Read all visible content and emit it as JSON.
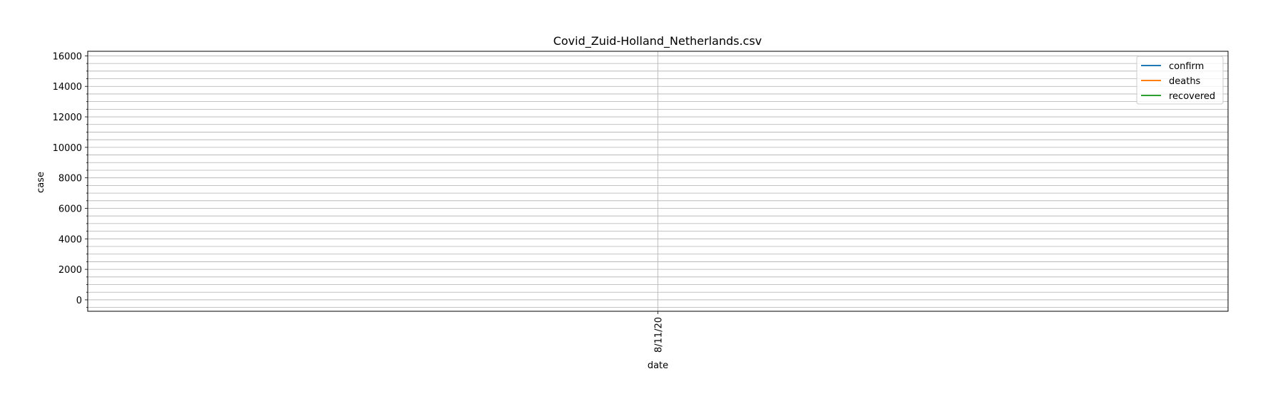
{
  "chart_data": {
    "type": "line",
    "title": "Covid_Zuid-Holland_Netherlands.csv",
    "xlabel": "date",
    "ylabel": "case",
    "x": [
      "8/11/20"
    ],
    "ylim": [
      -750,
      16300
    ],
    "yticks": [
      0,
      2000,
      4000,
      6000,
      8000,
      10000,
      12000,
      14000,
      16000
    ],
    "y_minor_step": 500,
    "grid": true,
    "legend_position": "top-right",
    "series": [
      {
        "name": "confirm",
        "color": "#1f77b4",
        "values": [
          null
        ]
      },
      {
        "name": "deaths",
        "color": "#ff7f0e",
        "values": [
          null
        ]
      },
      {
        "name": "recovered",
        "color": "#2ca02c",
        "values": [
          null
        ]
      }
    ]
  }
}
